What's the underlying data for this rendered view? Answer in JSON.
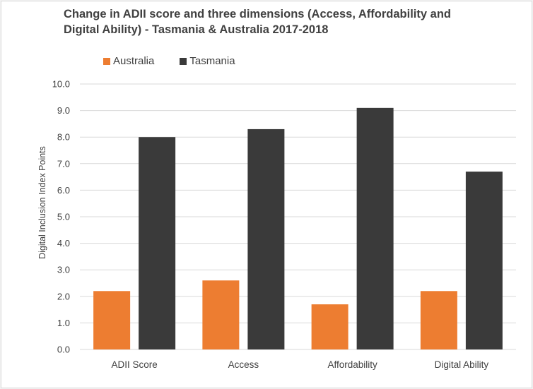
{
  "chart_data": {
    "type": "bar",
    "title": "Change in ADII score and three dimensions (Access, Affordability and Digital Ability) - Tasmania & Australia 2017-2018",
    "title_lines": [
      "Change in ADII score and three dimensions (Access, Affordability and",
      "Digital Ability) - Tasmania & Australia 2017-2018"
    ],
    "xlabel": "",
    "ylabel": "Digital Inclusion Index Points",
    "categories": [
      "ADII Score",
      "Access",
      "Affordability",
      "Digital Ability"
    ],
    "series": [
      {
        "name": "Australia",
        "color": "#ed7d31",
        "values": [
          2.2,
          2.6,
          1.7,
          2.2
        ]
      },
      {
        "name": "Tasmania",
        "color": "#3a3a3a",
        "values": [
          8.0,
          8.3,
          9.1,
          6.7
        ]
      }
    ],
    "ylim": [
      0,
      10
    ],
    "yticks": [
      "0.0",
      "1.0",
      "2.0",
      "3.0",
      "4.0",
      "5.0",
      "6.0",
      "7.0",
      "8.0",
      "9.0",
      "10.0"
    ],
    "grid": true,
    "legend_position": "top-left"
  }
}
